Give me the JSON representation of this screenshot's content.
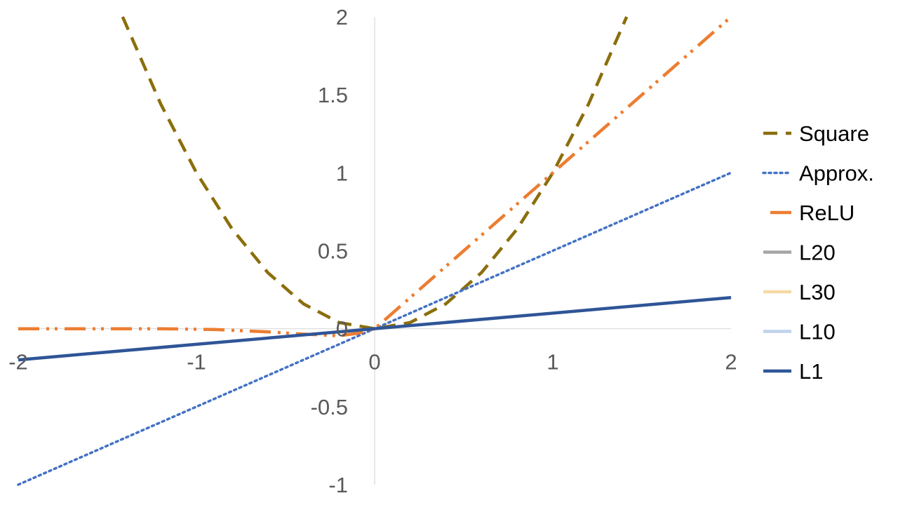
{
  "chart_data": {
    "type": "line",
    "title": "",
    "xlabel": "",
    "ylabel": "",
    "xlim": [
      -2,
      2
    ],
    "ylim": [
      -1,
      2
    ],
    "x_ticks": [
      "-2",
      "-1",
      "0",
      "1",
      "2"
    ],
    "y_ticks": [
      "-1",
      "-0.5",
      "0",
      "0.5",
      "1",
      "1.5",
      "2"
    ],
    "grid": false,
    "legend_position": "right",
    "series": [
      {
        "name": "Square",
        "color": "#8B6E0C",
        "style": "dashed",
        "x": [
          -1.414,
          -1.2,
          -1.0,
          -0.8,
          -0.6,
          -0.4,
          -0.2,
          0,
          0.2,
          0.4,
          0.6,
          0.8,
          1.0,
          1.2,
          1.414
        ],
        "y": [
          2.0,
          1.44,
          1.0,
          0.64,
          0.36,
          0.16,
          0.04,
          0,
          0.04,
          0.16,
          0.36,
          0.64,
          1.0,
          1.44,
          2.0
        ]
      },
      {
        "name": "Approx.",
        "color": "#4472C4",
        "style": "dotted",
        "x": [
          -2,
          2
        ],
        "y": [
          -1,
          1
        ]
      },
      {
        "name": "ReLU",
        "color": "#ED7D31",
        "style": "dash-dot-dot",
        "x": [
          -2,
          -1.2,
          -0.9,
          -0.6,
          -0.4,
          -0.2,
          -0.1,
          0,
          0.5,
          1.0,
          1.5,
          2.0
        ],
        "y": [
          0,
          0,
          -0.005,
          -0.02,
          -0.035,
          -0.045,
          -0.03,
          0,
          0.5,
          1.0,
          1.5,
          2.0
        ]
      },
      {
        "name": "L20",
        "color": "#A5A5A5",
        "style": "solid",
        "x": [],
        "y": []
      },
      {
        "name": "L30",
        "color": "#F6D9A4",
        "style": "solid",
        "x": [],
        "y": []
      },
      {
        "name": "L10",
        "color": "#BFD3EC",
        "style": "solid",
        "x": [],
        "y": []
      },
      {
        "name": "L1",
        "color": "#2F5597",
        "style": "solid",
        "x": [
          -2,
          2
        ],
        "y": [
          -0.2,
          0.2
        ]
      }
    ]
  }
}
